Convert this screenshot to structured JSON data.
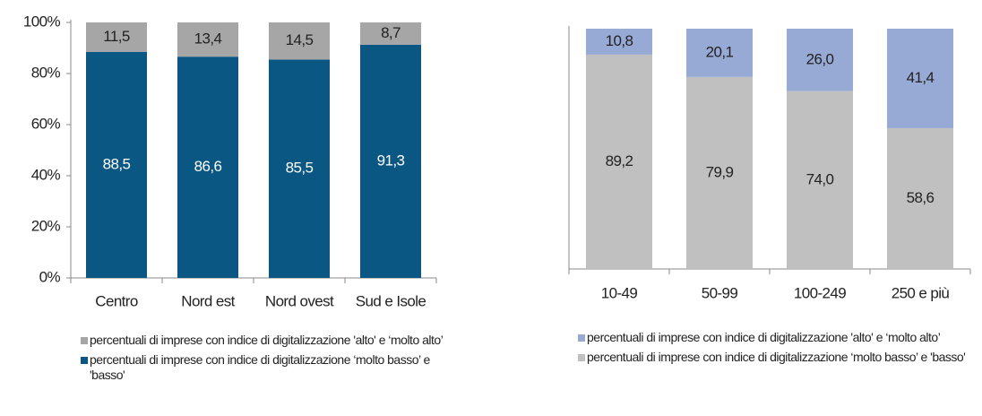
{
  "chart_data": [
    {
      "type": "bar",
      "stacked": true,
      "categories": [
        "Centro",
        "Nord est",
        "Nord ovest",
        "Sud e Isole"
      ],
      "ylim": [
        0,
        100
      ],
      "yticks": [
        {
          "value": 0,
          "label": "0%"
        },
        {
          "value": 20,
          "label": "20%"
        },
        {
          "value": 40,
          "label": "40%"
        },
        {
          "value": 60,
          "label": "60%"
        },
        {
          "value": 80,
          "label": "80%"
        },
        {
          "value": 100,
          "label": "100%"
        }
      ],
      "series": [
        {
          "name": "percentuali di imprese con indice di digitalizzazione 'alto' e ‘molto alto’",
          "color": "#a6a6a6",
          "label_color": "#222",
          "values": [
            11.5,
            13.4,
            14.5,
            8.7
          ],
          "value_labels": [
            "11,5",
            "13,4",
            "14,5",
            "8,7"
          ]
        },
        {
          "name": "percentuali di imprese con indice di digitalizzazione ‘molto basso’ e 'basso'",
          "color": "#0b5783",
          "label_color": "#ffffff",
          "values": [
            88.5,
            86.6,
            85.5,
            91.3
          ],
          "value_labels": [
            "88,5",
            "86,6",
            "85,5",
            "91,3"
          ]
        }
      ]
    },
    {
      "type": "bar",
      "stacked": true,
      "categories": [
        "10-49",
        "50-99",
        "100-249",
        "250 e più"
      ],
      "ylim": [
        0,
        100
      ],
      "series": [
        {
          "name": "percentuali di imprese con indice di digitalizzazione 'alto' e ‘molto alto’",
          "color": "#97aad6",
          "label_color": "#222",
          "values": [
            10.8,
            20.1,
            26.0,
            41.4
          ],
          "value_labels": [
            "10,8",
            "20,1",
            "26,0",
            "41,4"
          ]
        },
        {
          "name": "percentuali di imprese con indice di digitalizzazione ‘molto basso’ e 'basso'",
          "color": "#c0c0c0",
          "label_color": "#222",
          "values": [
            89.2,
            79.9,
            74.0,
            58.6
          ],
          "value_labels": [
            "89,2",
            "79,9",
            "74,0",
            "58,6"
          ]
        }
      ]
    }
  ]
}
